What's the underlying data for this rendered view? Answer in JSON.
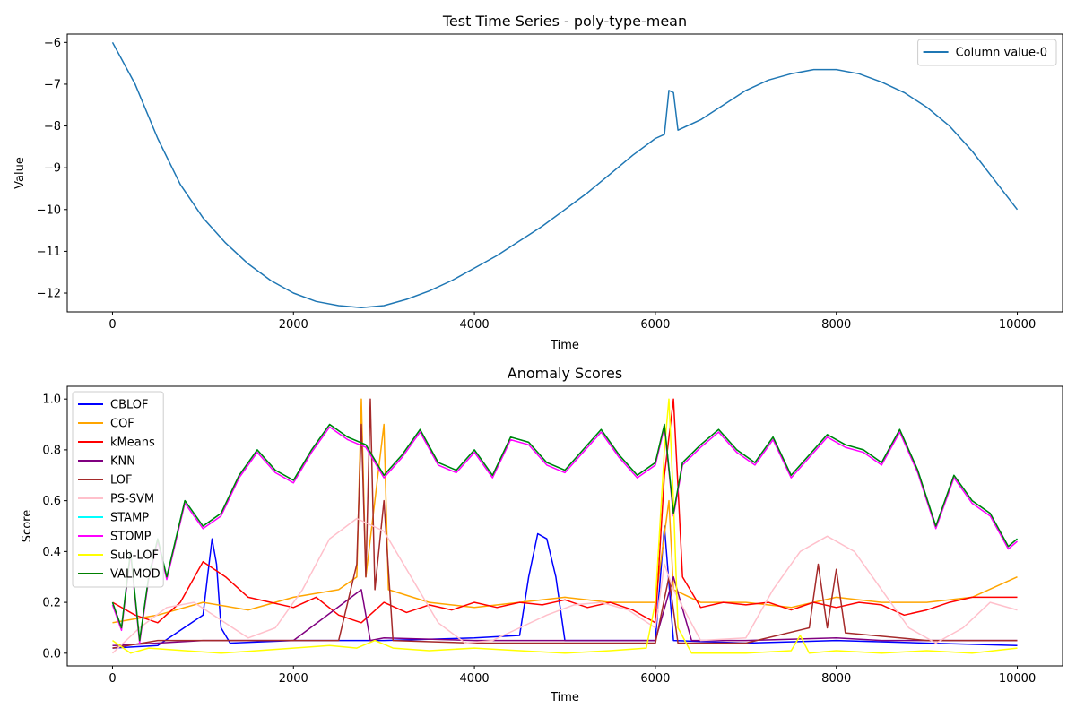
{
  "chart_data": [
    {
      "type": "line",
      "title": "Test Time Series - poly-type-mean",
      "xlabel": "Time",
      "ylabel": "Value",
      "xlim": [
        -500,
        10500
      ],
      "ylim": [
        -12.45,
        -5.8
      ],
      "xticks": [
        0,
        2000,
        4000,
        6000,
        8000,
        10000
      ],
      "xtick_labels": [
        "0",
        "2000",
        "4000",
        "6000",
        "8000",
        "10000"
      ],
      "yticks": [
        -12,
        -11,
        -10,
        -9,
        -8,
        -7,
        -6
      ],
      "ytick_labels": [
        "−12",
        "−11",
        "−10",
        "−9",
        "−8",
        "−7",
        "−6"
      ],
      "grid": false,
      "legend_position": "upper right",
      "series": [
        {
          "name": "Column value-0",
          "color": "#1f77b4",
          "x": [
            0,
            250,
            500,
            750,
            1000,
            1250,
            1500,
            1750,
            2000,
            2250,
            2500,
            2750,
            3000,
            3250,
            3500,
            3750,
            4000,
            4250,
            4500,
            4750,
            5000,
            5250,
            5500,
            5750,
            6000,
            6100,
            6150,
            6200,
            6250,
            6500,
            6750,
            7000,
            7250,
            7500,
            7750,
            8000,
            8250,
            8500,
            8750,
            9000,
            9250,
            9500,
            9750,
            10000
          ],
          "y": [
            -6.0,
            -7.0,
            -8.3,
            -9.4,
            -10.2,
            -10.8,
            -11.3,
            -11.7,
            -12.0,
            -12.2,
            -12.3,
            -12.35,
            -12.3,
            -12.15,
            -11.95,
            -11.7,
            -11.4,
            -11.1,
            -10.75,
            -10.4,
            -10.0,
            -9.6,
            -9.15,
            -8.7,
            -8.3,
            -8.2,
            -7.15,
            -7.2,
            -8.1,
            -7.85,
            -7.5,
            -7.15,
            -6.9,
            -6.75,
            -6.65,
            -6.65,
            -6.75,
            -6.95,
            -7.2,
            -7.55,
            -8.0,
            -8.6,
            -9.3,
            -10.0
          ]
        }
      ]
    },
    {
      "type": "line",
      "title": "Anomaly Scores",
      "xlabel": "Time",
      "ylabel": "Score",
      "xlim": [
        -500,
        10500
      ],
      "ylim": [
        -0.05,
        1.05
      ],
      "xticks": [
        0,
        2000,
        4000,
        6000,
        8000,
        10000
      ],
      "xtick_labels": [
        "0",
        "2000",
        "4000",
        "6000",
        "8000",
        "10000"
      ],
      "yticks": [
        0.0,
        0.2,
        0.4,
        0.6,
        0.8,
        1.0
      ],
      "ytick_labels": [
        "0.0",
        "0.2",
        "0.4",
        "0.6",
        "0.8",
        "1.0"
      ],
      "grid": false,
      "legend_position": "upper left",
      "series": [
        {
          "name": "CBLOF",
          "color": "#0000ff",
          "x": [
            0,
            500,
            1000,
            1050,
            1100,
            1150,
            1200,
            1300,
            2000,
            3000,
            4000,
            4500,
            4600,
            4700,
            4800,
            4900,
            5000,
            6000,
            6100,
            6200,
            7000,
            8000,
            9000,
            10000
          ],
          "y": [
            0.02,
            0.03,
            0.15,
            0.3,
            0.45,
            0.35,
            0.1,
            0.04,
            0.05,
            0.05,
            0.06,
            0.07,
            0.3,
            0.47,
            0.45,
            0.3,
            0.05,
            0.05,
            0.5,
            0.05,
            0.04,
            0.05,
            0.04,
            0.03
          ]
        },
        {
          "name": "COF",
          "color": "#ffa500",
          "x": [
            0,
            500,
            1000,
            1500,
            2000,
            2500,
            2700,
            2750,
            2800,
            3000,
            3050,
            3500,
            4000,
            4500,
            5000,
            5500,
            6000,
            6150,
            6200,
            6500,
            7000,
            7500,
            8000,
            8500,
            9000,
            9500,
            10000
          ],
          "y": [
            0.12,
            0.15,
            0.2,
            0.17,
            0.22,
            0.25,
            0.3,
            1.0,
            0.3,
            0.9,
            0.25,
            0.2,
            0.18,
            0.2,
            0.22,
            0.2,
            0.2,
            0.6,
            0.25,
            0.2,
            0.2,
            0.18,
            0.22,
            0.2,
            0.2,
            0.22,
            0.3
          ]
        },
        {
          "name": "kMeans",
          "color": "#ff0000",
          "x": [
            0,
            250,
            500,
            750,
            1000,
            1250,
            1500,
            1750,
            2000,
            2250,
            2500,
            2750,
            3000,
            3250,
            3500,
            3750,
            4000,
            4250,
            4500,
            4750,
            5000,
            5250,
            5500,
            5750,
            6000,
            6100,
            6200,
            6300,
            6500,
            6750,
            7000,
            7250,
            7500,
            7750,
            8000,
            8250,
            8500,
            8750,
            9000,
            9250,
            9500,
            9750,
            10000
          ],
          "y": [
            0.2,
            0.15,
            0.12,
            0.2,
            0.36,
            0.3,
            0.22,
            0.2,
            0.18,
            0.22,
            0.15,
            0.12,
            0.2,
            0.16,
            0.19,
            0.17,
            0.2,
            0.18,
            0.2,
            0.19,
            0.21,
            0.18,
            0.2,
            0.17,
            0.12,
            0.7,
            1.0,
            0.3,
            0.18,
            0.2,
            0.19,
            0.2,
            0.17,
            0.2,
            0.18,
            0.2,
            0.19,
            0.15,
            0.17,
            0.2,
            0.22,
            0.22,
            0.22
          ]
        },
        {
          "name": "KNN",
          "color": "#800080",
          "x": [
            0,
            1000,
            2000,
            2750,
            2850,
            3000,
            4000,
            5000,
            6000,
            6200,
            6400,
            7000,
            8000,
            8500,
            9000,
            10000
          ],
          "y": [
            0.03,
            0.05,
            0.05,
            0.25,
            0.05,
            0.06,
            0.05,
            0.05,
            0.05,
            0.3,
            0.05,
            0.05,
            0.06,
            0.05,
            0.05,
            0.05
          ]
        },
        {
          "name": "LOF",
          "color": "#a52a2a",
          "x": [
            0,
            500,
            1000,
            2500,
            2600,
            2700,
            2750,
            2800,
            2850,
            2900,
            3000,
            3100,
            4000,
            5000,
            6000,
            6150,
            6250,
            7000,
            7700,
            7800,
            7900,
            8000,
            8100,
            9000,
            10000
          ],
          "y": [
            0.02,
            0.05,
            0.05,
            0.05,
            0.2,
            0.35,
            0.9,
            0.3,
            1.0,
            0.25,
            0.6,
            0.05,
            0.04,
            0.04,
            0.04,
            0.3,
            0.04,
            0.04,
            0.1,
            0.35,
            0.1,
            0.33,
            0.08,
            0.05,
            0.05
          ]
        },
        {
          "name": "PS-SVM",
          "color": "#ffc0cb",
          "x": [
            0,
            300,
            600,
            900,
            1200,
            1500,
            1800,
            2100,
            2400,
            2700,
            3000,
            3300,
            3600,
            3900,
            4200,
            4500,
            4800,
            5100,
            5400,
            5700,
            6000,
            6100,
            6200,
            6500,
            7000,
            7300,
            7600,
            7900,
            8200,
            8500,
            8800,
            9100,
            9400,
            9700,
            10000
          ],
          "y": [
            0.0,
            0.1,
            0.18,
            0.2,
            0.13,
            0.06,
            0.1,
            0.25,
            0.45,
            0.53,
            0.48,
            0.3,
            0.12,
            0.04,
            0.05,
            0.1,
            0.15,
            0.19,
            0.2,
            0.17,
            0.1,
            0.35,
            0.25,
            0.05,
            0.06,
            0.25,
            0.4,
            0.46,
            0.4,
            0.25,
            0.1,
            0.04,
            0.1,
            0.2,
            0.17
          ]
        },
        {
          "name": "STAMP",
          "color": "#00ffff",
          "x": [
            0,
            100,
            200,
            300,
            400,
            500,
            600,
            800,
            1000,
            1200,
            1400,
            1600,
            1800,
            2000,
            2200,
            2400,
            2600,
            2800,
            3000,
            3200,
            3400,
            3600,
            3800,
            4000,
            4200,
            4400,
            4600,
            4800,
            5000,
            5200,
            5400,
            5600,
            5800,
            6000,
            6100,
            6200,
            6300,
            6500,
            6700,
            6900,
            7100,
            7300,
            7500,
            7700,
            7900,
            8100,
            8300,
            8500,
            8700,
            8900,
            9100,
            9300,
            9500,
            9700,
            9900,
            10000
          ],
          "y": [
            0.2,
            0.1,
            0.4,
            0.05,
            0.3,
            0.45,
            0.3,
            0.6,
            0.5,
            0.55,
            0.7,
            0.8,
            0.72,
            0.68,
            0.8,
            0.9,
            0.85,
            0.82,
            0.7,
            0.78,
            0.88,
            0.75,
            0.72,
            0.8,
            0.7,
            0.85,
            0.83,
            0.75,
            0.72,
            0.8,
            0.88,
            0.78,
            0.7,
            0.75,
            0.9,
            0.55,
            0.75,
            0.82,
            0.88,
            0.8,
            0.75,
            0.85,
            0.7,
            0.78,
            0.86,
            0.82,
            0.8,
            0.75,
            0.88,
            0.72,
            0.5,
            0.7,
            0.6,
            0.55,
            0.42,
            0.45
          ]
        },
        {
          "name": "STOMP",
          "color": "#ff00ff",
          "x": [
            0,
            100,
            200,
            300,
            400,
            500,
            600,
            800,
            1000,
            1200,
            1400,
            1600,
            1800,
            2000,
            2200,
            2400,
            2600,
            2800,
            3000,
            3200,
            3400,
            3600,
            3800,
            4000,
            4200,
            4400,
            4600,
            4800,
            5000,
            5200,
            5400,
            5600,
            5800,
            6000,
            6100,
            6200,
            6300,
            6500,
            6700,
            6900,
            7100,
            7300,
            7500,
            7700,
            7900,
            8100,
            8300,
            8500,
            8700,
            8900,
            9100,
            9300,
            9500,
            9700,
            9900,
            10000
          ],
          "y": [
            0.19,
            0.09,
            0.39,
            0.04,
            0.29,
            0.44,
            0.29,
            0.59,
            0.49,
            0.54,
            0.69,
            0.79,
            0.71,
            0.67,
            0.79,
            0.89,
            0.84,
            0.81,
            0.69,
            0.77,
            0.87,
            0.74,
            0.71,
            0.79,
            0.69,
            0.84,
            0.82,
            0.74,
            0.71,
            0.79,
            0.87,
            0.77,
            0.69,
            0.74,
            0.89,
            0.54,
            0.74,
            0.81,
            0.87,
            0.79,
            0.74,
            0.84,
            0.69,
            0.77,
            0.85,
            0.81,
            0.79,
            0.74,
            0.87,
            0.71,
            0.49,
            0.69,
            0.59,
            0.54,
            0.41,
            0.44
          ]
        },
        {
          "name": "Sub-LOF",
          "color": "#ffff00",
          "x": [
            0,
            200,
            400,
            800,
            1200,
            1600,
            2000,
            2400,
            2700,
            2900,
            3100,
            3500,
            4000,
            4500,
            5000,
            5500,
            5900,
            6000,
            6100,
            6150,
            6200,
            6250,
            6400,
            7000,
            7500,
            7600,
            7700,
            8000,
            8500,
            9000,
            9500,
            10000
          ],
          "y": [
            0.05,
            0.0,
            0.02,
            0.01,
            0.0,
            0.01,
            0.02,
            0.03,
            0.02,
            0.05,
            0.02,
            0.01,
            0.02,
            0.01,
            0.0,
            0.01,
            0.02,
            0.2,
            0.8,
            1.0,
            0.6,
            0.1,
            0.0,
            0.0,
            0.01,
            0.07,
            0.0,
            0.01,
            0.0,
            0.01,
            0.0,
            0.02
          ]
        },
        {
          "name": "VALMOD",
          "color": "#008000",
          "x": [
            0,
            100,
            200,
            300,
            400,
            500,
            600,
            800,
            1000,
            1200,
            1400,
            1600,
            1800,
            2000,
            2200,
            2400,
            2600,
            2800,
            3000,
            3200,
            3400,
            3600,
            3800,
            4000,
            4200,
            4400,
            4600,
            4800,
            5000,
            5200,
            5400,
            5600,
            5800,
            6000,
            6100,
            6200,
            6300,
            6500,
            6700,
            6900,
            7100,
            7300,
            7500,
            7700,
            7900,
            8100,
            8300,
            8500,
            8700,
            8900,
            9100,
            9300,
            9500,
            9700,
            9900,
            10000
          ],
          "y": [
            0.2,
            0.1,
            0.4,
            0.05,
            0.3,
            0.45,
            0.3,
            0.6,
            0.5,
            0.55,
            0.7,
            0.8,
            0.72,
            0.68,
            0.8,
            0.9,
            0.85,
            0.82,
            0.7,
            0.78,
            0.88,
            0.75,
            0.72,
            0.8,
            0.7,
            0.85,
            0.83,
            0.75,
            0.72,
            0.8,
            0.88,
            0.78,
            0.7,
            0.75,
            0.9,
            0.55,
            0.75,
            0.82,
            0.88,
            0.8,
            0.75,
            0.85,
            0.7,
            0.78,
            0.86,
            0.82,
            0.8,
            0.75,
            0.88,
            0.72,
            0.5,
            0.7,
            0.6,
            0.55,
            0.42,
            0.45
          ]
        }
      ]
    }
  ]
}
